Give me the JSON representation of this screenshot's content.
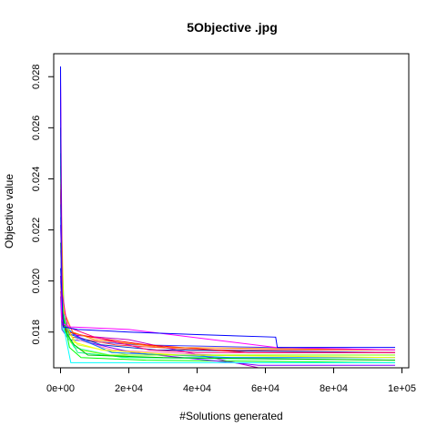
{
  "chart_data": {
    "type": "line",
    "title": "5Objective .jpg",
    "xlabel": "#Solutions generated",
    "ylabel": "Objective value",
    "xlim": [
      -2000,
      102000
    ],
    "ylim": [
      0.0166,
      0.0289
    ],
    "x_ticks": [
      0,
      20000,
      40000,
      60000,
      80000,
      100000
    ],
    "x_tick_labels": [
      "0e+00",
      "2e+04",
      "4e+04",
      "6e+04",
      "8e+04",
      "1e+05"
    ],
    "y_ticks": [
      0.018,
      0.02,
      0.022,
      0.024,
      0.026,
      0.028
    ],
    "y_tick_labels": [
      "0.018",
      "0.020",
      "0.022",
      "0.024",
      "0.026",
      "0.028"
    ],
    "grid": false,
    "legend": "none",
    "series": [
      {
        "color": "#0000ff",
        "points": [
          [
            0,
            0.0284
          ],
          [
            200,
            0.02
          ],
          [
            800,
            0.0182
          ],
          [
            5000,
            0.0181
          ],
          [
            20000,
            0.018
          ],
          [
            40000,
            0.0179
          ],
          [
            63000,
            0.0178
          ],
          [
            63500,
            0.0174
          ],
          [
            98000,
            0.0174
          ]
        ]
      },
      {
        "color": "#ff00ff",
        "points": [
          [
            0,
            0.0284
          ],
          [
            300,
            0.0185
          ],
          [
            1000,
            0.0183
          ],
          [
            3000,
            0.0182
          ],
          [
            20000,
            0.0181
          ],
          [
            63000,
            0.0174
          ],
          [
            98000,
            0.0173
          ]
        ]
      },
      {
        "color": "#ff0080",
        "points": [
          [
            0,
            0.0278
          ],
          [
            500,
            0.0195
          ],
          [
            2000,
            0.0182
          ],
          [
            10000,
            0.0178
          ],
          [
            26000,
            0.0173
          ],
          [
            40000,
            0.0172
          ],
          [
            98000,
            0.0172
          ]
        ]
      },
      {
        "color": "#00c000",
        "points": [
          [
            0,
            0.026
          ],
          [
            400,
            0.019
          ],
          [
            1500,
            0.018
          ],
          [
            4000,
            0.0175
          ],
          [
            8000,
            0.0171
          ],
          [
            30000,
            0.017
          ],
          [
            98000,
            0.0169
          ]
        ]
      },
      {
        "color": "#00ff80",
        "points": [
          [
            0,
            0.025
          ],
          [
            600,
            0.0188
          ],
          [
            2500,
            0.0178
          ],
          [
            5000,
            0.0172
          ],
          [
            20000,
            0.017
          ],
          [
            98000,
            0.0169
          ]
        ]
      },
      {
        "color": "#80ff00",
        "points": [
          [
            0,
            0.0245
          ],
          [
            800,
            0.0187
          ],
          [
            3000,
            0.0176
          ],
          [
            6000,
            0.0173
          ],
          [
            14000,
            0.0171
          ],
          [
            98000,
            0.0171
          ]
        ]
      },
      {
        "color": "#ffff00",
        "points": [
          [
            0,
            0.024
          ],
          [
            1000,
            0.0185
          ],
          [
            4000,
            0.0176
          ],
          [
            12000,
            0.0173
          ],
          [
            35000,
            0.0171
          ],
          [
            98000,
            0.017
          ]
        ]
      },
      {
        "color": "#ff8000",
        "points": [
          [
            0,
            0.0238
          ],
          [
            700,
            0.0189
          ],
          [
            3500,
            0.018
          ],
          [
            10000,
            0.0177
          ],
          [
            30000,
            0.0174
          ],
          [
            98000,
            0.0173
          ]
        ]
      },
      {
        "color": "#ff0000",
        "points": [
          [
            0,
            0.0236
          ],
          [
            500,
            0.0184
          ],
          [
            2000,
            0.018
          ],
          [
            9000,
            0.0178
          ],
          [
            25000,
            0.0175
          ],
          [
            55000,
            0.0172
          ],
          [
            98000,
            0.0172
          ]
        ]
      },
      {
        "color": "#00ffff",
        "points": [
          [
            0,
            0.023
          ],
          [
            500,
            0.0185
          ],
          [
            1800,
            0.0176
          ],
          [
            3000,
            0.0168
          ],
          [
            98000,
            0.0168
          ]
        ]
      },
      {
        "color": "#0080ff",
        "points": [
          [
            0,
            0.0225
          ],
          [
            1200,
            0.0183
          ],
          [
            4500,
            0.0178
          ],
          [
            15000,
            0.0172
          ],
          [
            50000,
            0.017
          ],
          [
            98000,
            0.017
          ]
        ]
      },
      {
        "color": "#8000ff",
        "points": [
          [
            0,
            0.0222
          ],
          [
            900,
            0.0182
          ],
          [
            3000,
            0.018
          ],
          [
            8000,
            0.0176
          ],
          [
            21000,
            0.0172
          ],
          [
            58000,
            0.0167
          ],
          [
            98000,
            0.0167
          ]
        ]
      },
      {
        "color": "#00ff00",
        "points": [
          [
            0,
            0.0215
          ],
          [
            600,
            0.0188
          ],
          [
            2600,
            0.0174
          ],
          [
            6000,
            0.017
          ],
          [
            25000,
            0.0169
          ],
          [
            98000,
            0.0168
          ]
        ]
      },
      {
        "color": "#ff80c0",
        "points": [
          [
            0,
            0.0212
          ],
          [
            1000,
            0.0186
          ],
          [
            5000,
            0.0177
          ],
          [
            15000,
            0.0173
          ],
          [
            45000,
            0.0171
          ],
          [
            98000,
            0.0171
          ]
        ]
      },
      {
        "color": "#0040c0",
        "points": [
          [
            0,
            0.0205
          ],
          [
            800,
            0.0184
          ],
          [
            3000,
            0.0179
          ],
          [
            12000,
            0.0175
          ],
          [
            28000,
            0.0173
          ],
          [
            98000,
            0.0172
          ]
        ]
      },
      {
        "color": "#c000c0",
        "points": [
          [
            0,
            0.0202
          ],
          [
            500,
            0.0183
          ],
          [
            2000,
            0.0179
          ],
          [
            20000,
            0.0177
          ],
          [
            58000,
            0.0166
          ],
          [
            98000,
            0.0166
          ]
        ]
      },
      {
        "color": "#40ffc0",
        "points": [
          [
            0,
            0.02
          ],
          [
            700,
            0.0181
          ],
          [
            4000,
            0.0174
          ],
          [
            18000,
            0.017
          ],
          [
            98000,
            0.017
          ]
        ]
      },
      {
        "color": "#c0ff40",
        "points": [
          [
            0,
            0.0198
          ],
          [
            900,
            0.0183
          ],
          [
            5000,
            0.0175
          ],
          [
            20000,
            0.0171
          ],
          [
            98000,
            0.0171
          ]
        ]
      },
      {
        "color": "#ff4040",
        "points": [
          [
            0,
            0.0196
          ],
          [
            600,
            0.0182
          ],
          [
            3500,
            0.0178
          ],
          [
            16000,
            0.0175
          ],
          [
            40000,
            0.0173
          ],
          [
            98000,
            0.0173
          ]
        ]
      },
      {
        "color": "#4040ff",
        "points": [
          [
            0,
            0.0194
          ],
          [
            400,
            0.0181
          ],
          [
            2500,
            0.0177
          ],
          [
            22000,
            0.0175
          ],
          [
            98000,
            0.0173
          ]
        ]
      }
    ]
  }
}
